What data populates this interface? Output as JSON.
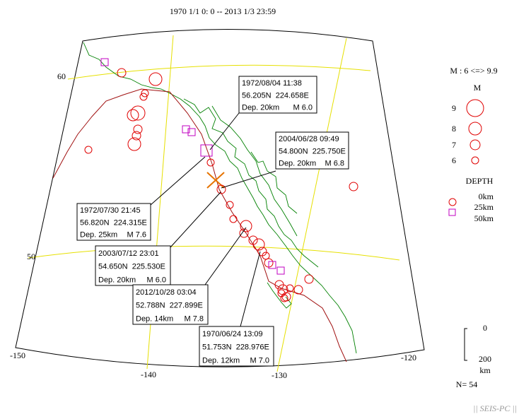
{
  "title": "1970 1/1 0: 0 -- 2013 1/3 23:59",
  "map": {
    "lat_labels": [
      "60",
      "50"
    ],
    "lon_labels": [
      "-150",
      "-140",
      "-130",
      "-120"
    ]
  },
  "annotations": [
    {
      "time": "1972/08/04 11:38",
      "location": "56.205N  224.658E",
      "depth": "Dep. 20km",
      "magnitude": "M 6.0"
    },
    {
      "time": "2004/06/28 09:49",
      "location": "54.800N  225.750E",
      "depth": "Dep. 20km",
      "magnitude": "M 6.8"
    },
    {
      "time": "1972/07/30 21:45",
      "location": "56.820N  224.315E",
      "depth": "Dep. 25km",
      "magnitude": "M 7.6"
    },
    {
      "time": "2003/07/12 23:01",
      "location": "54.650N  225.530E",
      "depth": "Dep. 20km",
      "magnitude": "M 6.0"
    },
    {
      "time": "2012/10/28 03:04",
      "location": "52.788N  227.899E",
      "depth": "Dep. 14km",
      "magnitude": "M 7.8"
    },
    {
      "time": "1970/06/24 13:09",
      "location": "51.753N  228.976E",
      "depth": "Dep. 12km",
      "magnitude": "M 7.0"
    }
  ],
  "legend": {
    "magnitude_range": "M : 6 <=> 9.9",
    "magnitude_title": "M",
    "magnitude_labels": [
      "9",
      "8",
      "7",
      "6"
    ],
    "depth_title": "DEPTH",
    "depth_labels": [
      "0km",
      "25km",
      "50km"
    ]
  },
  "scale": {
    "top": "0",
    "bottom": "200",
    "unit": "km"
  },
  "count": "N= 54",
  "footer": "|| SEIS-PC ||"
}
